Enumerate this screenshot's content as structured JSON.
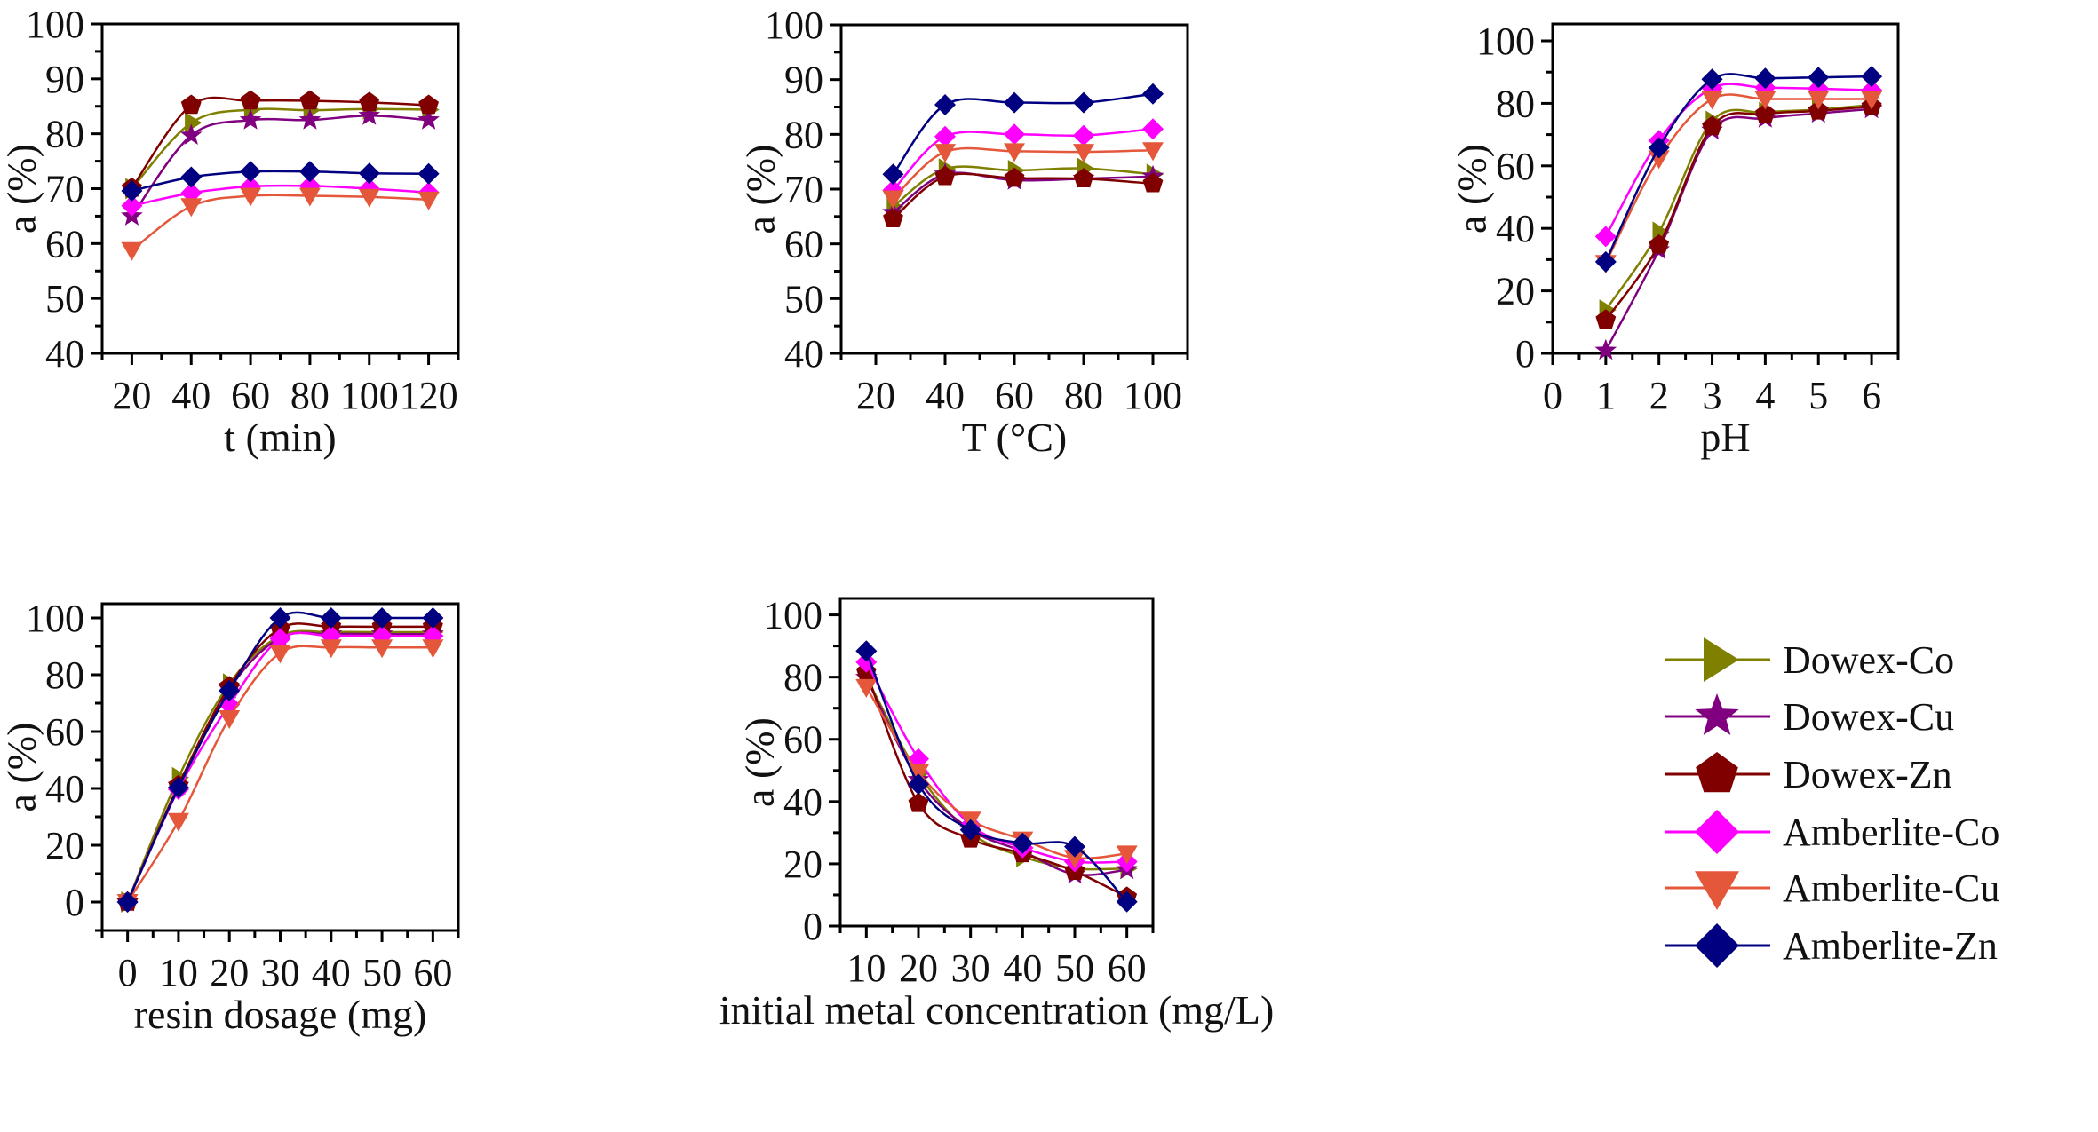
{
  "series_styles": [
    {
      "name": "Dowex-Co",
      "color": "#808000",
      "marker": "triangle-right"
    },
    {
      "name": "Dowex-Cu",
      "color": "#800080",
      "marker": "star"
    },
    {
      "name": "Dowex-Zn",
      "color": "#800000",
      "marker": "pentagon"
    },
    {
      "name": "Amberlite-Co",
      "color": "#ff00ff",
      "marker": "diamond"
    },
    {
      "name": "Amberlite-Cu",
      "color": "#e5573b",
      "marker": "triangle-down"
    },
    {
      "name": "Amberlite-Zn",
      "color": "#000080",
      "marker": "diamond"
    }
  ],
  "legend": {
    "placement": "bottom-right",
    "items": [
      "Dowex-Co",
      "Dowex-Cu",
      "Dowex-Zn",
      "Amberlite-Co",
      "Amberlite-Cu",
      "Amberlite-Zn"
    ]
  },
  "chart_data": [
    {
      "type": "line",
      "xlabel": "t (min)",
      "ylabel": "a (%)",
      "xlim": [
        10,
        130
      ],
      "ylim": [
        40,
        100
      ],
      "xticks": [
        20,
        40,
        60,
        80,
        100,
        120
      ],
      "xminor": 10,
      "yticks": [
        40,
        50,
        60,
        70,
        80,
        90,
        100
      ],
      "yminor": 5,
      "grid": false,
      "x": [
        20,
        40,
        60,
        80,
        100,
        120
      ],
      "series": [
        {
          "name": "Dowex-Co",
          "values": [
            70,
            82,
            84.4,
            84.3,
            84.5,
            84.4
          ]
        },
        {
          "name": "Dowex-Cu",
          "values": [
            65,
            79.7,
            82.5,
            82.5,
            83.3,
            82.5
          ]
        },
        {
          "name": "Dowex-Zn",
          "values": [
            70.1,
            85.2,
            86,
            86,
            85.7,
            85.2
          ]
        },
        {
          "name": "Amberlite-Co",
          "values": [
            66.9,
            69.2,
            70.4,
            70.5,
            70,
            69.3
          ]
        },
        {
          "name": "Amberlite-Cu",
          "values": [
            58.8,
            66.8,
            68.7,
            68.7,
            68.5,
            68
          ]
        },
        {
          "name": "Amberlite-Zn",
          "values": [
            69.6,
            72.1,
            73.1,
            73.1,
            72.8,
            72.7
          ]
        }
      ]
    },
    {
      "type": "line",
      "xlabel": "T (°C)",
      "ylabel": "a (%)",
      "xlim": [
        10,
        110
      ],
      "ylim": [
        40,
        100
      ],
      "xticks": [
        20,
        40,
        60,
        80,
        100
      ],
      "xminor": 10,
      "yticks": [
        40,
        50,
        60,
        70,
        80,
        90,
        100
      ],
      "yminor": 5,
      "grid": false,
      "x": [
        25,
        40,
        60,
        80,
        100
      ],
      "series": [
        {
          "name": "Dowex-Co",
          "values": [
            66.8,
            73.7,
            73.4,
            73.8,
            72.7
          ]
        },
        {
          "name": "Dowex-Cu",
          "values": [
            65.7,
            72.7,
            71.6,
            71.9,
            72.3
          ]
        },
        {
          "name": "Dowex-Zn",
          "values": [
            64.6,
            72.3,
            72,
            71.9,
            71
          ]
        },
        {
          "name": "Amberlite-Co",
          "values": [
            69.8,
            79.6,
            80,
            79.8,
            81
          ]
        },
        {
          "name": "Amberlite-Cu",
          "values": [
            68.3,
            76.8,
            76.9,
            76.8,
            77.1
          ]
        },
        {
          "name": "Amberlite-Zn",
          "values": [
            72.7,
            85.4,
            85.8,
            85.8,
            87.4
          ]
        }
      ]
    },
    {
      "type": "line",
      "xlabel": "pH",
      "ylabel": "a (%)",
      "xlim": [
        0,
        6.5
      ],
      "ylim": [
        0,
        105.4
      ],
      "xticks": [
        0,
        1,
        2,
        3,
        4,
        5,
        6
      ],
      "xminor": 0.5,
      "yticks": [
        0,
        20,
        40,
        60,
        80,
        100
      ],
      "yminor": 10,
      "grid": false,
      "x": [
        1,
        2,
        3,
        4,
        5,
        6
      ],
      "series": [
        {
          "name": "Dowex-Co",
          "values": [
            13.9,
            38.8,
            74.3,
            77.1,
            78,
            79.5
          ]
        },
        {
          "name": "Dowex-Cu",
          "values": [
            0.9,
            33.1,
            71.4,
            75.2,
            76.8,
            78.2
          ]
        },
        {
          "name": "Dowex-Zn",
          "values": [
            10.7,
            34.7,
            72.6,
            76.6,
            77.6,
            79
          ]
        },
        {
          "name": "Amberlite-Co",
          "values": [
            37.4,
            68.1,
            84.9,
            85,
            84.7,
            84.2
          ]
        },
        {
          "name": "Amberlite-Cu",
          "values": [
            28.9,
            62.4,
            81.4,
            81.4,
            81.4,
            81.4
          ]
        },
        {
          "name": "Amberlite-Zn",
          "values": [
            29.3,
            65.8,
            87.7,
            88,
            88.3,
            88.6
          ]
        }
      ]
    },
    {
      "type": "line",
      "xlabel": "resin dosage (mg)",
      "ylabel": "a (%)",
      "xlim": [
        -5,
        65
      ],
      "ylim": [
        -10,
        105
      ],
      "xticks": [
        0,
        10,
        20,
        30,
        40,
        50,
        60
      ],
      "xminor": 5,
      "yticks": [
        0,
        20,
        40,
        60,
        80,
        100
      ],
      "yminor": 10,
      "grid": false,
      "x": [
        0,
        10,
        20,
        30,
        40,
        50,
        60
      ],
      "series": [
        {
          "name": "Dowex-Co",
          "values": [
            0,
            43.8,
            76.8,
            93.7,
            95,
            95,
            95
          ]
        },
        {
          "name": "Dowex-Cu",
          "values": [
            0,
            41,
            75,
            93,
            94.3,
            94.3,
            94.3
          ]
        },
        {
          "name": "Dowex-Zn",
          "values": [
            0,
            41,
            75.8,
            96.3,
            96.9,
            96.9,
            96.9
          ]
        },
        {
          "name": "Amberlite-Co",
          "values": [
            0,
            39.7,
            69.5,
            92.7,
            93.7,
            93.7,
            93.7
          ]
        },
        {
          "name": "Amberlite-Cu",
          "values": [
            0,
            28.5,
            64.7,
            87.7,
            89.6,
            89.6,
            89.6
          ]
        },
        {
          "name": "Amberlite-Zn",
          "values": [
            0,
            40.3,
            74.4,
            100,
            100,
            100,
            100
          ]
        }
      ]
    },
    {
      "type": "line",
      "xlabel": "initial metal concentration (mg/L)",
      "ylabel": "a (%)",
      "xlim": [
        5,
        65
      ],
      "ylim": [
        0,
        105.3
      ],
      "xticks": [
        10,
        20,
        30,
        40,
        50,
        60
      ],
      "xminor": 5,
      "yticks": [
        0,
        20,
        40,
        60,
        80,
        100
      ],
      "yminor": 10,
      "grid": false,
      "x": [
        10,
        20,
        30,
        40,
        50,
        60
      ],
      "series": [
        {
          "name": "Dowex-Co",
          "values": [
            80,
            49,
            30,
            22.3,
            18.5,
            18.5
          ]
        },
        {
          "name": "Dowex-Cu",
          "values": [
            79.8,
            47,
            31,
            24,
            16.6,
            18.1
          ]
        },
        {
          "name": "Dowex-Zn",
          "values": [
            81.6,
            39.4,
            28,
            23.3,
            17.6,
            9.3
          ]
        },
        {
          "name": "Amberlite-Co",
          "values": [
            84.8,
            53.7,
            32.5,
            25.2,
            20.7,
            20.7
          ]
        },
        {
          "name": "Amberlite-Cu",
          "values": [
            76.8,
            49.4,
            34.2,
            27.8,
            21.9,
            23.3
          ]
        },
        {
          "name": "Amberlite-Zn",
          "values": [
            88.4,
            45.6,
            30.9,
            26.6,
            25.5,
            7.8
          ]
        }
      ]
    }
  ]
}
